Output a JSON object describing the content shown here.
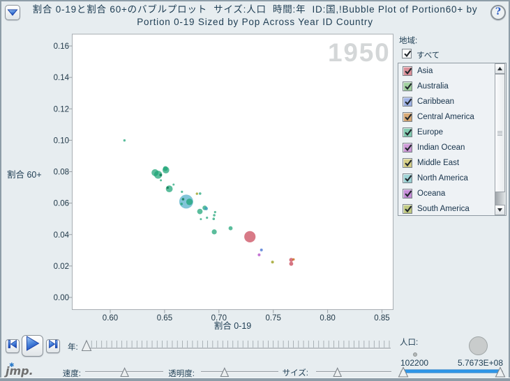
{
  "header": {
    "title_line1": "割合 0-19と割合 60+のバブルプロット  サイズ:人口  時間:年  ID:国,!Bubble Plot of Portion60+ by",
    "title_line2": "Portion 0-19 Sized by Pop Across Year ID Country",
    "help_icon": "?"
  },
  "chart_data": {
    "type": "bubble",
    "xlabel": "割合 0-19",
    "ylabel": "割合 60+",
    "xlim": [
      0.565,
      0.86
    ],
    "ylim": [
      -0.0077,
      0.1675
    ],
    "xticks": [
      0.6,
      0.65,
      0.7,
      0.75,
      0.8,
      0.85
    ],
    "xtick_labels": [
      "0.60",
      "0.65",
      "0.70",
      "0.75",
      "0.80",
      "0.85"
    ],
    "yticks": [
      0.0,
      0.02,
      0.04,
      0.06,
      0.08,
      0.1,
      0.12,
      0.14,
      0.16
    ],
    "ytick_labels": [
      "0.00",
      "0.02",
      "0.04",
      "0.06",
      "0.08",
      "0.10",
      "0.12",
      "0.14",
      "0.16"
    ],
    "grid": false,
    "year_watermark": "1950",
    "palette": {
      "g": "rgba(28,163,118,0.72)",
      "gd": "rgba(16,122,84,0.85)",
      "cy": "rgba(88,178,203,0.75)",
      "tb": "rgba(56,158,188,0.80)",
      "rose": "rgba(201,71,89,0.72)",
      "red": "rgba(198,62,80,0.72)",
      "or": "rgba(196,106,17,0.78)",
      "bl": "rgba(62,108,208,0.75)",
      "mg": "rgba(176,70,196,0.75)",
      "ol": "rgba(148,152,16,0.75)"
    },
    "points": [
      {
        "x": 0.6131,
        "y": 0.0999,
        "r": 1.7,
        "c": "g"
      },
      {
        "x": 0.6412,
        "y": 0.0794,
        "r": 5.0,
        "c": "g"
      },
      {
        "x": 0.644,
        "y": 0.0781,
        "r": 5.7,
        "c": "g"
      },
      {
        "x": 0.6465,
        "y": 0.0779,
        "r": 1.9,
        "c": "gd"
      },
      {
        "x": 0.6508,
        "y": 0.082,
        "r": 3.5,
        "c": "g"
      },
      {
        "x": 0.6512,
        "y": 0.081,
        "r": 4.8,
        "c": "g"
      },
      {
        "x": 0.6466,
        "y": 0.0745,
        "r": 1.5,
        "c": "g"
      },
      {
        "x": 0.6528,
        "y": 0.0698,
        "r": 1.7,
        "c": "gd"
      },
      {
        "x": 0.6543,
        "y": 0.0691,
        "r": 4.9,
        "c": "g"
      },
      {
        "x": 0.6583,
        "y": 0.0718,
        "r": 1.5,
        "c": "g"
      },
      {
        "x": 0.666,
        "y": 0.0672,
        "r": 1.6,
        "c": "g"
      },
      {
        "x": 0.6699,
        "y": 0.061,
        "r": 10.0,
        "c": "cy"
      },
      {
        "x": 0.6729,
        "y": 0.0608,
        "r": 4.7,
        "c": "g"
      },
      {
        "x": 0.667,
        "y": 0.0625,
        "r": 1.8,
        "c": "gd"
      },
      {
        "x": 0.6656,
        "y": 0.0595,
        "r": 1.8,
        "c": "g"
      },
      {
        "x": 0.6798,
        "y": 0.066,
        "r": 1.7,
        "c": "ol"
      },
      {
        "x": 0.6827,
        "y": 0.0661,
        "r": 1.8,
        "c": "g"
      },
      {
        "x": 0.687,
        "y": 0.057,
        "r": 3.3,
        "c": "g"
      },
      {
        "x": 0.6883,
        "y": 0.0565,
        "r": 2.4,
        "c": "tb"
      },
      {
        "x": 0.6825,
        "y": 0.0547,
        "r": 3.9,
        "c": "g"
      },
      {
        "x": 0.6965,
        "y": 0.0543,
        "r": 1.6,
        "c": "g"
      },
      {
        "x": 0.6957,
        "y": 0.0523,
        "r": 1.8,
        "c": "g"
      },
      {
        "x": 0.689,
        "y": 0.0507,
        "r": 1.6,
        "c": "g"
      },
      {
        "x": 0.6834,
        "y": 0.0498,
        "r": 1.5,
        "c": "g"
      },
      {
        "x": 0.6952,
        "y": 0.05,
        "r": 1.8,
        "c": "g"
      },
      {
        "x": 0.6957,
        "y": 0.0417,
        "r": 3.6,
        "c": "g"
      },
      {
        "x": 0.7107,
        "y": 0.044,
        "r": 2.9,
        "c": "g"
      },
      {
        "x": 0.7285,
        "y": 0.0386,
        "r": 8.1,
        "c": "rose"
      },
      {
        "x": 0.7391,
        "y": 0.0302,
        "r": 2.0,
        "c": "bl"
      },
      {
        "x": 0.737,
        "y": 0.0271,
        "r": 2.0,
        "c": "mg"
      },
      {
        "x": 0.7493,
        "y": 0.0225,
        "r": 2.0,
        "c": "ol"
      },
      {
        "x": 0.7665,
        "y": 0.0239,
        "r": 2.9,
        "c": "red"
      },
      {
        "x": 0.7665,
        "y": 0.0214,
        "r": 2.9,
        "c": "red"
      },
      {
        "x": 0.7687,
        "y": 0.0242,
        "r": 1.7,
        "c": "or"
      }
    ]
  },
  "region_panel": {
    "label": "地域:",
    "all_label": "すべて",
    "all_checked": true,
    "items": [
      {
        "label": "Asia",
        "color": "#db9099",
        "checked": true
      },
      {
        "label": "Australia",
        "color": "#a2d1a0",
        "checked": true
      },
      {
        "label": "Caribbean",
        "color": "#a0b3e6",
        "checked": true
      },
      {
        "label": "Central America",
        "color": "#d8a976",
        "checked": true
      },
      {
        "label": "Europe",
        "color": "#83ccb1",
        "checked": true
      },
      {
        "label": "Indian Ocean",
        "color": "#cf9ad8",
        "checked": true
      },
      {
        "label": "Middle East",
        "color": "#d6cf87",
        "checked": true
      },
      {
        "label": "North America",
        "color": "#9ed4d6",
        "checked": true
      },
      {
        "label": "Oceana",
        "color": "#c78ed9",
        "checked": true
      },
      {
        "label": "South America",
        "color": "#c2cb83",
        "checked": true
      }
    ]
  },
  "sliders": {
    "year": {
      "label": "年:",
      "value": 0.0,
      "ticks": 61
    },
    "speed": {
      "label": "速度:",
      "value": 0.506
    },
    "transparency": {
      "label": "透明度:",
      "value": 0.29
    },
    "size": {
      "label": "サイズ:",
      "value": 0.267
    }
  },
  "population": {
    "label": "人口:",
    "min_label": "102200",
    "max_label": "5.7673E+08",
    "range": [
      0.0,
      1.0
    ]
  },
  "logo": {
    "text": "jmp.",
    "star": "✱"
  }
}
